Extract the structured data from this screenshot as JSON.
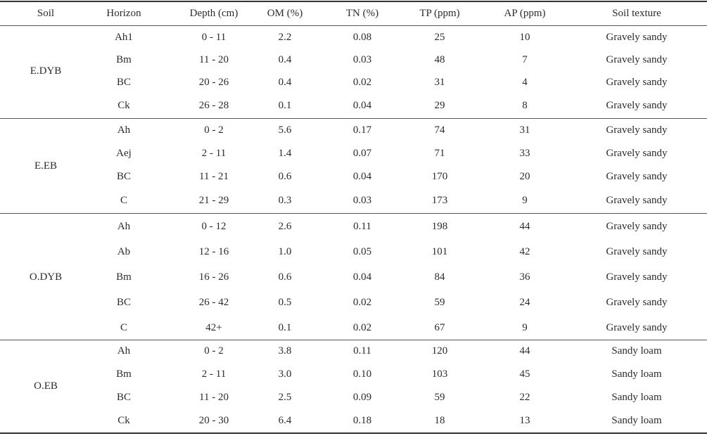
{
  "headers": {
    "soil": "Soil",
    "horizon": "Horizon",
    "depth": "Depth (cm)",
    "om": "OM (%)",
    "tn": "TN (%)",
    "tp": "TP (ppm)",
    "ap": "AP (ppm)",
    "texture": "Soil texture"
  },
  "groups": [
    {
      "soil": "E.DYB",
      "rows": [
        {
          "horizon": "Ah1",
          "depth": "0 - 11",
          "om": "2.2",
          "tn": "0.08",
          "tp": "25",
          "ap": "10",
          "texture": "Gravely sandy"
        },
        {
          "horizon": "Bm",
          "depth": "11 - 20",
          "om": "0.4",
          "tn": "0.03",
          "tp": "48",
          "ap": "7",
          "texture": "Gravely sandy"
        },
        {
          "horizon": "BC",
          "depth": "20 - 26",
          "om": "0.4",
          "tn": "0.02",
          "tp": "31",
          "ap": "4",
          "texture": "Gravely sandy"
        },
        {
          "horizon": "Ck",
          "depth": "26 - 28",
          "om": "0.1",
          "tn": "0.04",
          "tp": "29",
          "ap": "8",
          "texture": "Gravely sandy"
        }
      ]
    },
    {
      "soil": "E.EB",
      "rows": [
        {
          "horizon": "Ah",
          "depth": "0 - 2",
          "om": "5.6",
          "tn": "0.17",
          "tp": "74",
          "ap": "31",
          "texture": "Gravely sandy"
        },
        {
          "horizon": "Aej",
          "depth": "2 - 11",
          "om": "1.4",
          "tn": "0.07",
          "tp": "71",
          "ap": "33",
          "texture": "Gravely sandy"
        },
        {
          "horizon": "BC",
          "depth": "11 - 21",
          "om": "0.6",
          "tn": "0.04",
          "tp": "170",
          "ap": "20",
          "texture": "Gravely sandy"
        },
        {
          "horizon": "C",
          "depth": "21 - 29",
          "om": "0.3",
          "tn": "0.03",
          "tp": "173",
          "ap": "9",
          "texture": "Gravely sandy"
        }
      ]
    },
    {
      "soil": "O.DYB",
      "rows": [
        {
          "horizon": "Ah",
          "depth": "0 - 12",
          "om": "2.6",
          "tn": "0.11",
          "tp": "198",
          "ap": "44",
          "texture": "Gravely sandy"
        },
        {
          "horizon": "Ab",
          "depth": "12 - 16",
          "om": "1.0",
          "tn": "0.05",
          "tp": "101",
          "ap": "42",
          "texture": "Gravely sandy"
        },
        {
          "horizon": "Bm",
          "depth": "16 - 26",
          "om": "0.6",
          "tn": "0.04",
          "tp": "84",
          "ap": "36",
          "texture": "Gravely sandy"
        },
        {
          "horizon": "BC",
          "depth": "26 - 42",
          "om": "0.5",
          "tn": "0.02",
          "tp": "59",
          "ap": "24",
          "texture": "Gravely sandy"
        },
        {
          "horizon": "C",
          "depth": "42+",
          "om": "0.1",
          "tn": "0.02",
          "tp": "67",
          "ap": "9",
          "texture": "Gravely sandy"
        }
      ]
    },
    {
      "soil": "O.EB",
      "rows": [
        {
          "horizon": "Ah",
          "depth": "0 - 2",
          "om": "3.8",
          "tn": "0.11",
          "tp": "120",
          "ap": "44",
          "texture": "Sandy loam"
        },
        {
          "horizon": "Bm",
          "depth": "2 - 11",
          "om": "3.0",
          "tn": "0.10",
          "tp": "103",
          "ap": "45",
          "texture": "Sandy loam"
        },
        {
          "horizon": "BC",
          "depth": "11 - 20",
          "om": "2.5",
          "tn": "0.09",
          "tp": "59",
          "ap": "22",
          "texture": "Sandy loam"
        },
        {
          "horizon": "Ck",
          "depth": "20 - 30",
          "om": "6.4",
          "tn": "0.18",
          "tp": "18",
          "ap": "13",
          "texture": "Sandy loam"
        }
      ]
    }
  ]
}
